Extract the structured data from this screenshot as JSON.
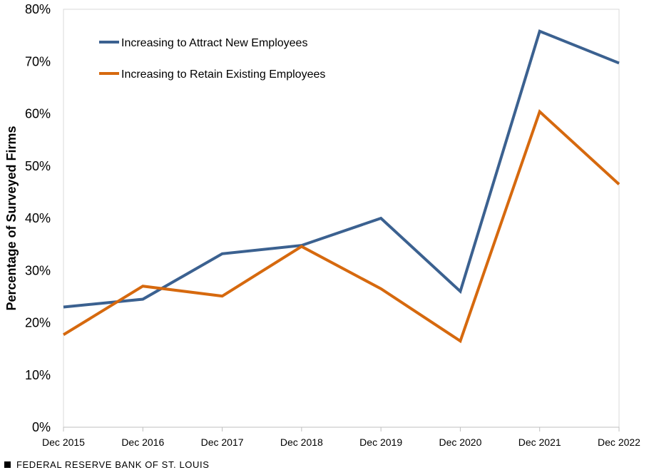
{
  "chart_data": {
    "type": "line",
    "categories": [
      "Dec 2015",
      "Dec 2016",
      "Dec 2017",
      "Dec 2018",
      "Dec 2019",
      "Dec 2020",
      "Dec 2021",
      "Dec 2022"
    ],
    "series": [
      {
        "name": "Increasing to Attract New Employees",
        "color": "#3b6190",
        "values": [
          23,
          24.5,
          33.2,
          34.8,
          40,
          26,
          75.8,
          69.7
        ]
      },
      {
        "name": "Increasing to Retain Existing Employees",
        "color": "#d6690e",
        "values": [
          17.7,
          27,
          25.1,
          34.6,
          26.5,
          16.5,
          60.4,
          46.5
        ]
      }
    ],
    "ylabel": "Percentage of Surveyed Firms",
    "xlabel": "",
    "ylim": [
      0,
      80
    ],
    "yticks": [
      "0%",
      "10%",
      "20%",
      "30%",
      "40%",
      "50%",
      "60%",
      "70%",
      "80%"
    ],
    "ytick_values": [
      0,
      10,
      20,
      30,
      40,
      50,
      60,
      70,
      80
    ],
    "legend_position": "top-left",
    "grid": false
  },
  "footer": {
    "source": "FEDERAL RESERVE BANK OF ST. LOUIS"
  }
}
